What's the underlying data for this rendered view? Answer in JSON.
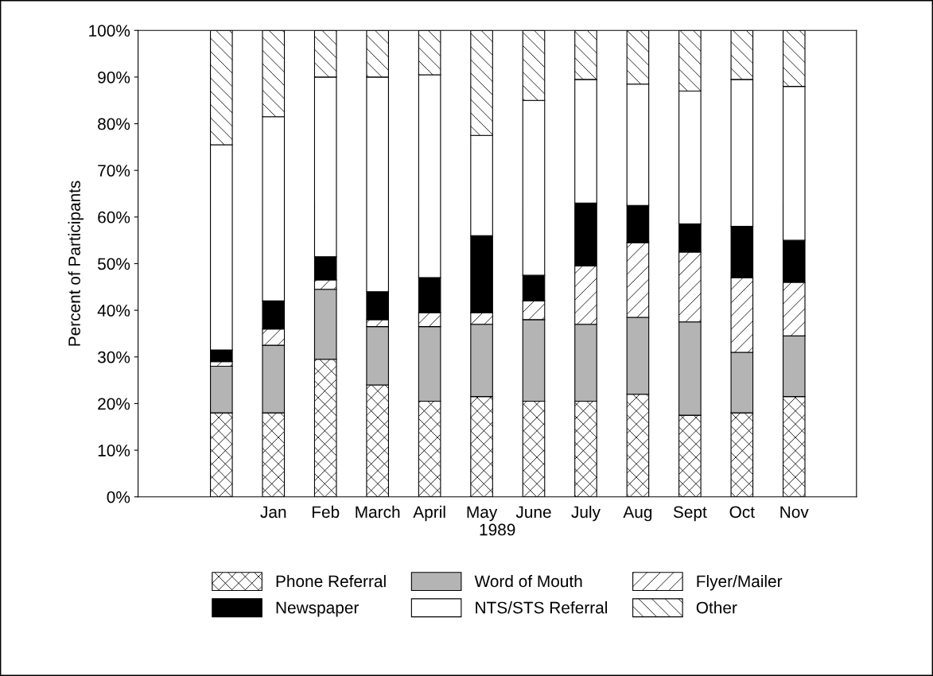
{
  "chart_data": {
    "type": "bar",
    "stacked": true,
    "ylabel": "Percent of Participants",
    "xlabel": "1989",
    "categories": [
      null,
      "Jan",
      "Feb",
      "March",
      "April",
      "May",
      "June",
      "July",
      "Aug",
      "Sept",
      "Oct",
      "Nov"
    ],
    "series": [
      {
        "name": "Phone Referral",
        "color": "#ffffff",
        "values": [
          18,
          18,
          29.5,
          24,
          20.5,
          21.5,
          20.5,
          20.5,
          22,
          17.5,
          18,
          21.5
        ]
      },
      {
        "name": "Word of Mouth",
        "color": "#b4b4b4",
        "values": [
          10,
          14.5,
          15,
          12.5,
          16,
          15.5,
          17.5,
          16.5,
          16.5,
          20,
          13,
          13
        ]
      },
      {
        "name": "Flyer/Mailer",
        "color": "#ffffff",
        "values": [
          1,
          3.5,
          2,
          1.5,
          3,
          2.5,
          4,
          12.5,
          16,
          15,
          16,
          11.5
        ]
      },
      {
        "name": "Newspaper",
        "color": "#000000",
        "values": [
          2.5,
          6,
          5,
          6,
          7.5,
          16.5,
          5.5,
          13.5,
          8,
          6,
          11,
          9
        ]
      },
      {
        "name": "NTS/STS Referral",
        "color": "#ffffff",
        "values": [
          44,
          39.5,
          38.5,
          46,
          43.5,
          21.5,
          37.5,
          26.5,
          26,
          28.5,
          31.5,
          33
        ]
      },
      {
        "name": "Other",
        "color": "#ffffff",
        "values": [
          24.5,
          18.5,
          10,
          10,
          9.5,
          22.5,
          15,
          10.5,
          11.5,
          13,
          10.5,
          12
        ]
      }
    ],
    "ylim": [
      0,
      100
    ],
    "yticks": [
      {
        "value": 0,
        "label": "0%"
      },
      {
        "value": 10,
        "label": "10%"
      },
      {
        "value": 20,
        "label": "20%"
      },
      {
        "value": 30,
        "label": "30%"
      },
      {
        "value": 40,
        "label": "40%"
      },
      {
        "value": 50,
        "label": "50%"
      },
      {
        "value": 60,
        "label": "60%"
      },
      {
        "value": 70,
        "label": "70%"
      },
      {
        "value": 80,
        "label": "80%"
      },
      {
        "value": 90,
        "label": "90%"
      },
      {
        "value": 100,
        "label": "100%"
      }
    ],
    "grid": false,
    "legend": "bottom"
  }
}
